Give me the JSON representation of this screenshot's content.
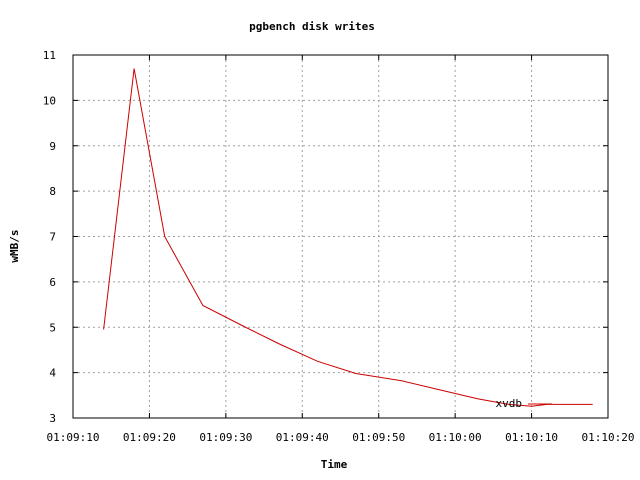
{
  "chart_data": {
    "type": "line",
    "title": "pgbench disk writes",
    "xlabel": "Time",
    "ylabel": "wMB/s",
    "xlim": [
      "01:09:10",
      "01:10:20"
    ],
    "ylim": [
      3,
      11
    ],
    "x_ticks": [
      "01:09:10",
      "01:09:20",
      "01:09:30",
      "01:09:40",
      "01:09:50",
      "01:10:00",
      "01:10:10",
      "01:10:20"
    ],
    "y_ticks": [
      "3",
      "4",
      "5",
      "6",
      "7",
      "8",
      "9",
      "10",
      "11"
    ],
    "grid": true,
    "legend_position": "bottom-right",
    "series": [
      {
        "name": "xvdb",
        "color": "#cc0000",
        "x": [
          "01:09:14",
          "01:09:18",
          "01:09:22",
          "01:09:27",
          "01:09:32",
          "01:09:37",
          "01:09:42",
          "01:09:47",
          "01:09:53",
          "01:09:58",
          "01:10:03",
          "01:10:07",
          "01:10:10",
          "01:10:12",
          "01:10:18"
        ],
        "y": [
          4.95,
          10.7,
          7.0,
          5.48,
          5.05,
          4.63,
          4.25,
          3.98,
          3.82,
          3.62,
          3.42,
          3.3,
          3.26,
          3.3,
          3.3
        ]
      }
    ]
  }
}
